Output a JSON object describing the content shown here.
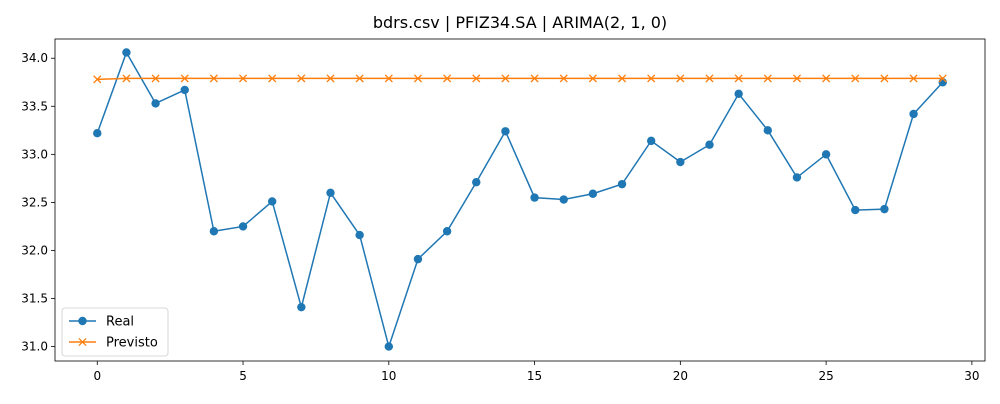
{
  "chart_data": {
    "type": "line",
    "title": "bdrs.csv | PFIZ34.SA | ARIMA(2, 1, 0)",
    "xlabel": "",
    "ylabel": "",
    "xlim": [
      -1.45,
      30.45
    ],
    "ylim": [
      30.85,
      34.2
    ],
    "xticks": [
      0,
      5,
      10,
      15,
      20,
      25,
      30
    ],
    "yticks": [
      31.0,
      31.5,
      32.0,
      32.5,
      33.0,
      33.5,
      34.0
    ],
    "ytick_labels": [
      "31.0",
      "31.5",
      "32.0",
      "32.5",
      "33.0",
      "33.5",
      "34.0"
    ],
    "grid": false,
    "legend_position": "lower-left",
    "x": [
      0,
      1,
      2,
      3,
      4,
      5,
      6,
      7,
      8,
      9,
      10,
      11,
      12,
      13,
      14,
      15,
      16,
      17,
      18,
      19,
      20,
      21,
      22,
      23,
      24,
      25,
      26,
      27,
      28,
      29
    ],
    "series": [
      {
        "name": "Real",
        "color": "#1f77b4",
        "marker": "circle",
        "values": [
          33.22,
          34.06,
          33.53,
          33.67,
          32.2,
          32.25,
          32.51,
          31.41,
          32.6,
          32.16,
          31.0,
          31.91,
          32.2,
          32.71,
          33.24,
          32.55,
          32.53,
          32.59,
          32.69,
          33.14,
          32.92,
          33.1,
          33.63,
          33.25,
          32.76,
          33.0,
          32.42,
          32.43,
          33.42,
          33.75
        ]
      },
      {
        "name": "Previsto",
        "color": "#ff7f0e",
        "marker": "x",
        "values": [
          33.78,
          33.79,
          33.79,
          33.79,
          33.79,
          33.79,
          33.79,
          33.79,
          33.79,
          33.79,
          33.79,
          33.79,
          33.79,
          33.79,
          33.79,
          33.79,
          33.79,
          33.79,
          33.79,
          33.79,
          33.79,
          33.79,
          33.79,
          33.79,
          33.79,
          33.79,
          33.79,
          33.79,
          33.79,
          33.79
        ]
      }
    ]
  }
}
